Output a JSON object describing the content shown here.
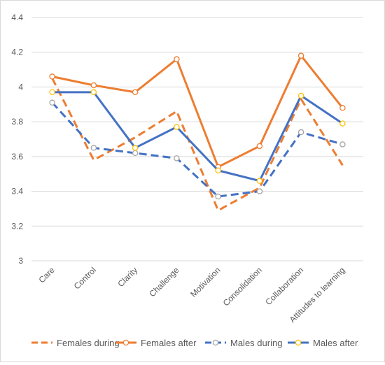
{
  "chart_data": {
    "type": "line",
    "title": "",
    "xlabel": "",
    "ylabel": "",
    "ylim": [
      3,
      4.4
    ],
    "yticks": [
      3,
      3.2,
      3.4,
      3.6,
      3.8,
      4,
      4.2,
      4.4
    ],
    "ytick_labels": [
      "3",
      "3.2",
      "3.4",
      "3.6",
      "3.8",
      "4",
      "4.2",
      "4.4"
    ],
    "grid": true,
    "legend_position": "bottom",
    "categories": [
      "Care",
      "Control",
      "Clarity",
      "Challenge",
      "Motivation",
      "Consolidation",
      "Collaboration",
      "Attitudes to learning"
    ],
    "series": [
      {
        "name": "Females during",
        "color": "#ED7D31",
        "style": "dashed",
        "marker": "none",
        "values": [
          4.05,
          3.58,
          3.71,
          3.86,
          3.29,
          3.42,
          3.93,
          3.55
        ]
      },
      {
        "name": "Females after",
        "color": "#ED7D31",
        "style": "solid",
        "marker": "circle",
        "marker_fill": "#FFFFFF",
        "marker_stroke": "#ED7D31",
        "values": [
          4.06,
          4.01,
          3.97,
          4.16,
          3.54,
          3.66,
          4.18,
          3.88
        ]
      },
      {
        "name": "Males during",
        "color": "#4472C4",
        "style": "dashed",
        "marker": "circle",
        "marker_fill": "#FFFFFF",
        "marker_stroke": "#A5A5A5",
        "values": [
          3.91,
          3.65,
          3.62,
          3.59,
          3.37,
          3.4,
          3.74,
          3.67
        ]
      },
      {
        "name": "Males after",
        "color": "#4472C4",
        "style": "solid",
        "marker": "circle",
        "marker_fill": "#FFFFFF",
        "marker_stroke": "#FFC000",
        "values": [
          3.97,
          3.97,
          3.65,
          3.77,
          3.52,
          3.46,
          3.95,
          3.79
        ]
      }
    ]
  }
}
